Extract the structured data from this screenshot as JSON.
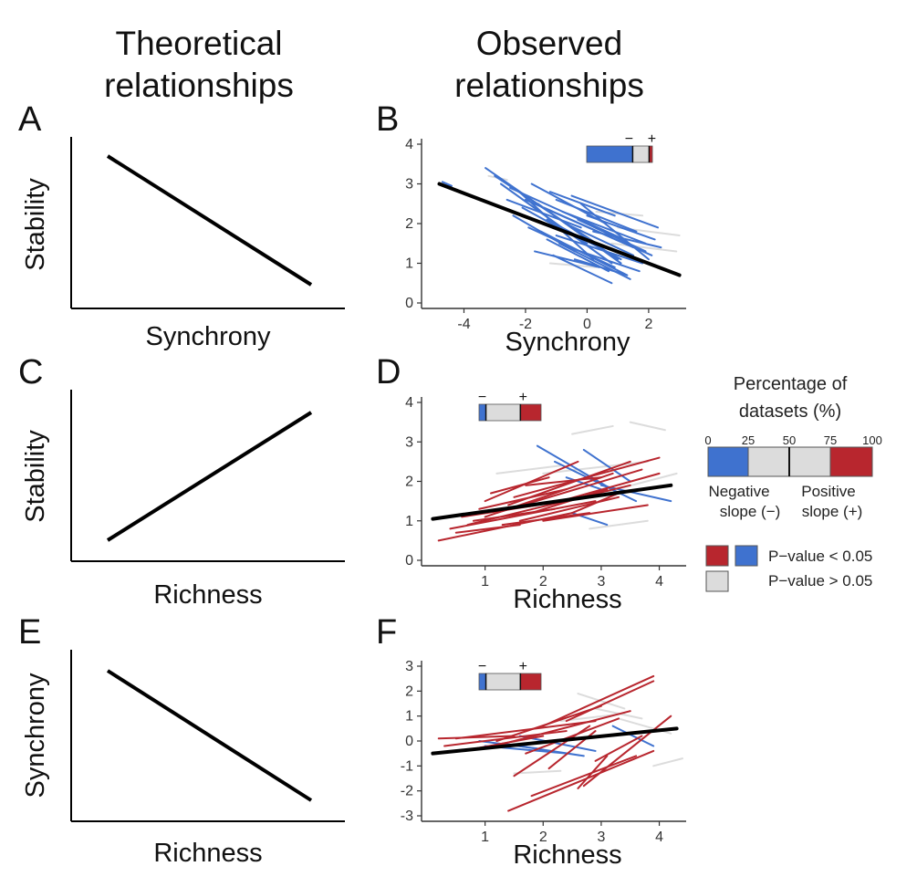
{
  "headers": {
    "theoretical": [
      "Theoretical",
      "relationships"
    ],
    "observed": [
      "Observed",
      "relationships"
    ]
  },
  "panel_letters": [
    "A",
    "B",
    "C",
    "D",
    "E",
    "F"
  ],
  "theoretical_panels": [
    {
      "letter": "A",
      "ylabel": "Stability",
      "xlabel": "Synchrony",
      "direction": "negative"
    },
    {
      "letter": "C",
      "ylabel": "Stability",
      "xlabel": "Richness",
      "direction": "positive"
    },
    {
      "letter": "E",
      "ylabel": "Synchrony",
      "xlabel": "Richness",
      "direction": "negative"
    }
  ],
  "legend": {
    "title": [
      "Percentage of",
      "datasets (%)"
    ],
    "scale_ticks": [
      "0",
      "25",
      "50",
      "75",
      "100"
    ],
    "negative_label": [
      "Negative",
      "slope (−)"
    ],
    "positive_label": [
      "Positive",
      "slope (+)"
    ],
    "sig_label": "P−value < 0.05",
    "nonsig_label": "P−value > 0.05",
    "colors": {
      "negative": "#3f72cf",
      "positive": "#b8262e",
      "nonsig": "#dcdcdc",
      "fit": "#000000"
    }
  },
  "chart_data": [
    {
      "panel": "B",
      "type": "line",
      "xlabel": "Synchrony",
      "ylabel": "",
      "xlim": [
        -5.2,
        3.1
      ],
      "ylim": [
        0,
        4
      ],
      "xticks": [
        -4,
        -2,
        0,
        2
      ],
      "yticks": [
        0,
        1,
        2,
        3,
        4
      ],
      "fit": {
        "x": [
          -4.8,
          3.0
        ],
        "y": [
          3.0,
          0.7
        ]
      },
      "minibar": {
        "negative": 70,
        "nonsig": 25,
        "positive": 5,
        "labels": [
          "−",
          "+"
        ]
      },
      "series": [
        {
          "x": [
            -4.7,
            -4.4
          ],
          "y": [
            3.05,
            2.95
          ],
          "color": "blue"
        },
        {
          "x": [
            -3.3,
            1.0
          ],
          "y": [
            3.4,
            1.1
          ],
          "color": "blue"
        },
        {
          "x": [
            -3.0,
            0.5
          ],
          "y": [
            3.2,
            1.4
          ],
          "color": "blue"
        },
        {
          "x": [
            -2.8,
            0.8
          ],
          "y": [
            3.0,
            1.0
          ],
          "color": "blue"
        },
        {
          "x": [
            -2.5,
            1.2
          ],
          "y": [
            2.9,
            1.6
          ],
          "color": "blue"
        },
        {
          "x": [
            -2.2,
            0.2
          ],
          "y": [
            2.8,
            1.1
          ],
          "color": "blue"
        },
        {
          "x": [
            -2.0,
            1.5
          ],
          "y": [
            2.6,
            1.4
          ],
          "color": "blue"
        },
        {
          "x": [
            -1.8,
            0.6
          ],
          "y": [
            3.0,
            2.0
          ],
          "color": "blue"
        },
        {
          "x": [
            -1.6,
            1.1
          ],
          "y": [
            2.5,
            1.0
          ],
          "color": "blue"
        },
        {
          "x": [
            -1.4,
            2.1
          ],
          "y": [
            2.4,
            1.2
          ],
          "color": "blue"
        },
        {
          "x": [
            -1.2,
            0.9
          ],
          "y": [
            2.8,
            2.2
          ],
          "color": "blue"
        },
        {
          "x": [
            -1.0,
            1.6
          ],
          "y": [
            2.6,
            1.8
          ],
          "color": "blue"
        },
        {
          "x": [
            -0.8,
            1.9
          ],
          "y": [
            2.3,
            1.5
          ],
          "color": "blue"
        },
        {
          "x": [
            -0.5,
            2.3
          ],
          "y": [
            2.7,
            1.9
          ],
          "color": "blue"
        },
        {
          "x": [
            -0.2,
            2.0
          ],
          "y": [
            2.5,
            1.1
          ],
          "color": "blue"
        },
        {
          "x": [
            -2.4,
            -0.4
          ],
          "y": [
            2.2,
            1.3
          ],
          "color": "blue"
        },
        {
          "x": [
            -1.9,
            0.9
          ],
          "y": [
            1.9,
            0.9
          ],
          "color": "blue"
        },
        {
          "x": [
            -1.5,
            1.3
          ],
          "y": [
            1.8,
            0.7
          ],
          "color": "blue"
        },
        {
          "x": [
            -1.3,
            0.7
          ],
          "y": [
            1.6,
            0.8
          ],
          "color": "blue"
        },
        {
          "x": [
            -1.0,
            1.8
          ],
          "y": [
            1.7,
            1.0
          ],
          "color": "blue"
        },
        {
          "x": [
            -0.9,
            1.4
          ],
          "y": [
            1.5,
            0.6
          ],
          "color": "blue"
        },
        {
          "x": [
            -0.6,
            1.7
          ],
          "y": [
            1.4,
            0.8
          ],
          "color": "blue"
        },
        {
          "x": [
            -0.3,
            1.9
          ],
          "y": [
            2.1,
            1.3
          ],
          "color": "blue"
        },
        {
          "x": [
            0.0,
            2.2
          ],
          "y": [
            2.2,
            1.6
          ],
          "color": "blue"
        },
        {
          "x": [
            0.2,
            2.4
          ],
          "y": [
            1.8,
            1.4
          ],
          "color": "blue"
        },
        {
          "x": [
            -1.7,
            0.4
          ],
          "y": [
            1.3,
            0.9
          ],
          "color": "blue"
        },
        {
          "x": [
            -1.1,
            0.8
          ],
          "y": [
            1.2,
            0.5
          ],
          "color": "blue"
        },
        {
          "x": [
            -0.4,
            1.3
          ],
          "y": [
            1.1,
            0.7
          ],
          "color": "blue"
        },
        {
          "x": [
            -2.1,
            0.0
          ],
          "y": [
            2.4,
            1.5
          ],
          "color": "blue"
        },
        {
          "x": [
            -0.7,
            1.5
          ],
          "y": [
            2.0,
            1.2
          ],
          "color": "blue"
        },
        {
          "x": [
            -2.6,
            -0.2
          ],
          "y": [
            2.6,
            1.9
          ],
          "color": "blue"
        },
        {
          "x": [
            -1.3,
            1.1
          ],
          "y": [
            2.1,
            1.1
          ],
          "color": "blue"
        },
        {
          "x": [
            -3.2,
            -2.6
          ],
          "y": [
            3.2,
            3.1
          ],
          "color": "grey"
        },
        {
          "x": [
            0.8,
            2.9
          ],
          "y": [
            1.5,
            1.3
          ],
          "color": "grey"
        },
        {
          "x": [
            1.0,
            3.0
          ],
          "y": [
            1.9,
            1.7
          ],
          "color": "grey"
        },
        {
          "x": [
            0.3,
            1.8
          ],
          "y": [
            2.3,
            2.2
          ],
          "color": "grey"
        },
        {
          "x": [
            -1.2,
            0.3
          ],
          "y": [
            1.0,
            0.9
          ],
          "color": "grey"
        }
      ]
    },
    {
      "panel": "D",
      "type": "line",
      "xlabel": "Richness",
      "ylabel": "",
      "xlim": [
        0.0,
        4.4
      ],
      "ylim": [
        0,
        4
      ],
      "xticks": [
        1,
        2,
        3,
        4
      ],
      "yticks": [
        0,
        1,
        2,
        3,
        4
      ],
      "fit": {
        "x": [
          0.1,
          4.2
        ],
        "y": [
          1.05,
          1.9
        ]
      },
      "minibar": {
        "negative": 10,
        "nonsig": 50,
        "positive": 30,
        "labels": [
          "−",
          "+"
        ]
      },
      "series": [
        {
          "x": [
            0.2,
            2.5
          ],
          "y": [
            0.5,
            1.2
          ],
          "color": "red"
        },
        {
          "x": [
            0.4,
            2.9
          ],
          "y": [
            0.8,
            1.5
          ],
          "color": "red"
        },
        {
          "x": [
            0.7,
            3.5
          ],
          "y": [
            0.9,
            1.9
          ],
          "color": "red"
        },
        {
          "x": [
            0.8,
            2.2
          ],
          "y": [
            1.0,
            1.3
          ],
          "color": "red"
        },
        {
          "x": [
            1.0,
            3.2
          ],
          "y": [
            1.1,
            2.2
          ],
          "color": "red"
        },
        {
          "x": [
            1.2,
            3.7
          ],
          "y": [
            1.2,
            2.3
          ],
          "color": "red"
        },
        {
          "x": [
            1.4,
            3.5
          ],
          "y": [
            1.4,
            2.5
          ],
          "color": "red"
        },
        {
          "x": [
            1.5,
            4.0
          ],
          "y": [
            1.6,
            2.6
          ],
          "color": "red"
        },
        {
          "x": [
            1.6,
            3.3
          ],
          "y": [
            1.0,
            1.6
          ],
          "color": "red"
        },
        {
          "x": [
            1.8,
            3.1
          ],
          "y": [
            1.2,
            1.8
          ],
          "color": "red"
        },
        {
          "x": [
            1.0,
            2.6
          ],
          "y": [
            1.5,
            2.5
          ],
          "color": "red"
        },
        {
          "x": [
            0.9,
            2.4
          ],
          "y": [
            1.3,
            1.8
          ],
          "color": "red"
        },
        {
          "x": [
            1.3,
            2.8
          ],
          "y": [
            0.9,
            1.2
          ],
          "color": "red"
        },
        {
          "x": [
            2.0,
            3.8
          ],
          "y": [
            1.0,
            1.4
          ],
          "color": "red"
        },
        {
          "x": [
            2.3,
            4.0
          ],
          "y": [
            1.5,
            2.2
          ],
          "color": "red"
        },
        {
          "x": [
            0.6,
            1.9
          ],
          "y": [
            1.1,
            1.4
          ],
          "color": "red"
        },
        {
          "x": [
            1.1,
            2.1
          ],
          "y": [
            1.7,
            2.1
          ],
          "color": "red"
        },
        {
          "x": [
            1.7,
            3.0
          ],
          "y": [
            1.9,
            2.1
          ],
          "color": "red"
        },
        {
          "x": [
            0.5,
            1.6
          ],
          "y": [
            0.7,
            0.9
          ],
          "color": "red"
        },
        {
          "x": [
            2.5,
            3.3
          ],
          "y": [
            1.2,
            1.7
          ],
          "color": "red"
        },
        {
          "x": [
            1.9,
            3.3
          ],
          "y": [
            2.9,
            1.7
          ],
          "color": "blue"
        },
        {
          "x": [
            2.2,
            3.6
          ],
          "y": [
            2.5,
            1.5
          ],
          "color": "blue"
        },
        {
          "x": [
            2.7,
            3.5
          ],
          "y": [
            2.8,
            2.0
          ],
          "color": "blue"
        },
        {
          "x": [
            3.0,
            4.2
          ],
          "y": [
            1.9,
            1.5
          ],
          "color": "blue"
        },
        {
          "x": [
            2.5,
            3.1
          ],
          "y": [
            1.2,
            0.9
          ],
          "color": "blue"
        },
        {
          "x": [
            2.4,
            3.0
          ],
          "y": [
            2.1,
            1.8
          ],
          "color": "blue"
        },
        {
          "x": [
            2.5,
            3.2
          ],
          "y": [
            3.2,
            3.4
          ],
          "color": "grey"
        },
        {
          "x": [
            3.5,
            4.1
          ],
          "y": [
            3.5,
            3.3
          ],
          "color": "grey"
        },
        {
          "x": [
            2.0,
            3.8
          ],
          "y": [
            2.2,
            2.5
          ],
          "color": "grey"
        },
        {
          "x": [
            3.0,
            4.3
          ],
          "y": [
            1.7,
            2.2
          ],
          "color": "grey"
        },
        {
          "x": [
            2.8,
            3.8
          ],
          "y": [
            0.8,
            1.0
          ],
          "color": "grey"
        },
        {
          "x": [
            1.2,
            2.3
          ],
          "y": [
            2.2,
            2.4
          ],
          "color": "grey"
        }
      ]
    },
    {
      "panel": "F",
      "type": "line",
      "xlabel": "Richness",
      "ylabel": "",
      "xlim": [
        0.0,
        4.4
      ],
      "ylim": [
        -3,
        3
      ],
      "xticks": [
        1,
        2,
        3,
        4
      ],
      "yticks": [
        -3,
        -2,
        -1,
        0,
        1,
        2,
        3
      ],
      "fit": {
        "x": [
          0.1,
          4.3
        ],
        "y": [
          -0.5,
          0.5
        ]
      },
      "minibar": {
        "negative": 10,
        "nonsig": 50,
        "positive": 30,
        "labels": [
          "−",
          "+"
        ]
      },
      "series": [
        {
          "x": [
            1.4,
            3.9
          ],
          "y": [
            -2.8,
            -0.4
          ],
          "color": "red"
        },
        {
          "x": [
            1.8,
            3.6
          ],
          "y": [
            -2.2,
            -0.6
          ],
          "color": "red"
        },
        {
          "x": [
            2.6,
            3.1
          ],
          "y": [
            -1.9,
            -0.6
          ],
          "color": "red"
        },
        {
          "x": [
            2.7,
            4.2
          ],
          "y": [
            -1.8,
            1.0
          ],
          "color": "red"
        },
        {
          "x": [
            2.0,
            3.9
          ],
          "y": [
            0.6,
            2.6
          ],
          "color": "red"
        },
        {
          "x": [
            2.4,
            3.9
          ],
          "y": [
            0.8,
            2.4
          ],
          "color": "red"
        },
        {
          "x": [
            1.2,
            3.0
          ],
          "y": [
            0.0,
            1.4
          ],
          "color": "red"
        },
        {
          "x": [
            1.0,
            3.5
          ],
          "y": [
            -0.3,
            1.2
          ],
          "color": "red"
        },
        {
          "x": [
            0.5,
            2.9
          ],
          "y": [
            0.1,
            0.8
          ],
          "color": "red"
        },
        {
          "x": [
            0.3,
            2.4
          ],
          "y": [
            -0.2,
            0.4
          ],
          "color": "red"
        },
        {
          "x": [
            1.5,
            2.8
          ],
          "y": [
            -1.4,
            0.6
          ],
          "color": "red"
        },
        {
          "x": [
            2.1,
            2.9
          ],
          "y": [
            -1.1,
            0.4
          ],
          "color": "red"
        },
        {
          "x": [
            0.6,
            2.0
          ],
          "y": [
            -0.4,
            0.2
          ],
          "color": "red"
        },
        {
          "x": [
            2.9,
            3.7
          ],
          "y": [
            -0.8,
            0.2
          ],
          "color": "red"
        },
        {
          "x": [
            0.2,
            1.5
          ],
          "y": [
            0.1,
            0.2
          ],
          "color": "red"
        },
        {
          "x": [
            1.7,
            3.3
          ],
          "y": [
            -0.5,
            0.9
          ],
          "color": "red"
        },
        {
          "x": [
            0.9,
            1.9
          ],
          "y": [
            0.0,
            -0.3
          ],
          "color": "blue"
        },
        {
          "x": [
            1.3,
            2.7
          ],
          "y": [
            -0.1,
            -0.6
          ],
          "color": "blue"
        },
        {
          "x": [
            1.6,
            2.9
          ],
          "y": [
            0.2,
            -0.4
          ],
          "color": "blue"
        },
        {
          "x": [
            1.0,
            2.4
          ],
          "y": [
            -0.2,
            -0.5
          ],
          "color": "blue"
        },
        {
          "x": [
            3.2,
            3.9
          ],
          "y": [
            0.6,
            -0.2
          ],
          "color": "blue"
        },
        {
          "x": [
            2.6,
            3.4
          ],
          "y": [
            1.9,
            1.3
          ],
          "color": "grey"
        },
        {
          "x": [
            2.9,
            3.7
          ],
          "y": [
            1.3,
            0.9
          ],
          "color": "grey"
        },
        {
          "x": [
            3.9,
            4.4
          ],
          "y": [
            -1.0,
            -0.7
          ],
          "color": "grey"
        },
        {
          "x": [
            1.5,
            2.3
          ],
          "y": [
            -1.3,
            -1.2
          ],
          "color": "grey"
        },
        {
          "x": [
            2.3,
            3.4
          ],
          "y": [
            0.8,
            1.1
          ],
          "color": "grey"
        },
        {
          "x": [
            3.3,
            4.2
          ],
          "y": [
            0.9,
            0.3
          ],
          "color": "grey"
        }
      ]
    }
  ]
}
